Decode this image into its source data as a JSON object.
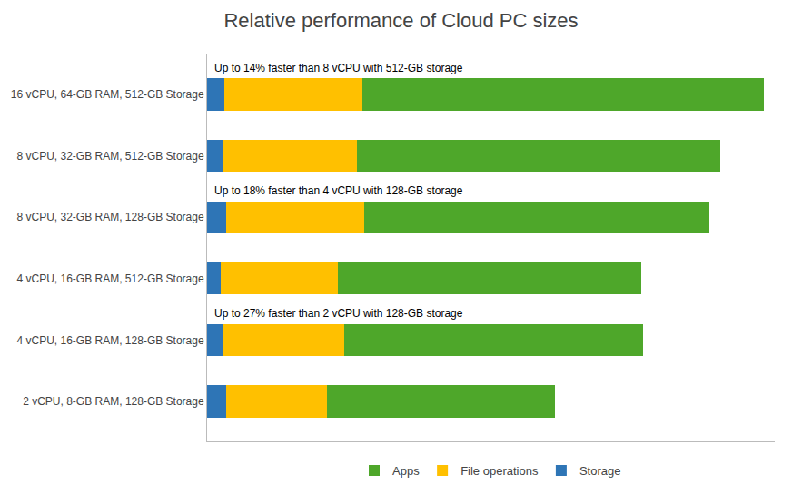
{
  "chart_data": {
    "type": "bar",
    "orientation": "horizontal",
    "stacked": true,
    "title": "Relative performance of Cloud PC sizes",
    "categories": [
      "16 vCPU, 64-GB RAM, 512-GB Storage",
      "8 vCPU, 32-GB RAM, 512-GB Storage",
      "8 vCPU, 32-GB RAM, 128-GB Storage",
      "4 vCPU, 16-GB RAM, 512-GB Storage",
      "4 vCPU, 16-GB RAM, 128-GB Storage",
      "2 vCPU, 8-GB RAM, 128-GB Storage"
    ],
    "series": [
      {
        "name": "Storage",
        "color": "#2E75B6",
        "values": [
          18,
          17,
          20,
          15,
          17,
          20
        ]
      },
      {
        "name": "File operations",
        "color": "#FFC000",
        "values": [
          148,
          143,
          148,
          125,
          130,
          108
        ]
      },
      {
        "name": "Apps",
        "color": "#4EA72A",
        "values": [
          430,
          390,
          370,
          325,
          320,
          245
        ]
      }
    ],
    "annotations": [
      {
        "category": "16 vCPU, 64-GB RAM, 512-GB Storage",
        "text": "Up to 14% faster than 8 vCPU with 512-GB storage"
      },
      {
        "category": "8 vCPU, 32-GB RAM, 128-GB Storage",
        "text": "Up to 18% faster than 4 vCPU with 128-GB storage"
      },
      {
        "category": "4 vCPU, 16-GB RAM, 128-GB Storage",
        "text": "Up to 27% faster than 2 vCPU with 128-GB storage"
      }
    ],
    "xlim": [
      0,
      607.92
    ],
    "xticks": [],
    "tick_labels": "y",
    "grid": false,
    "legend": "bottom"
  }
}
